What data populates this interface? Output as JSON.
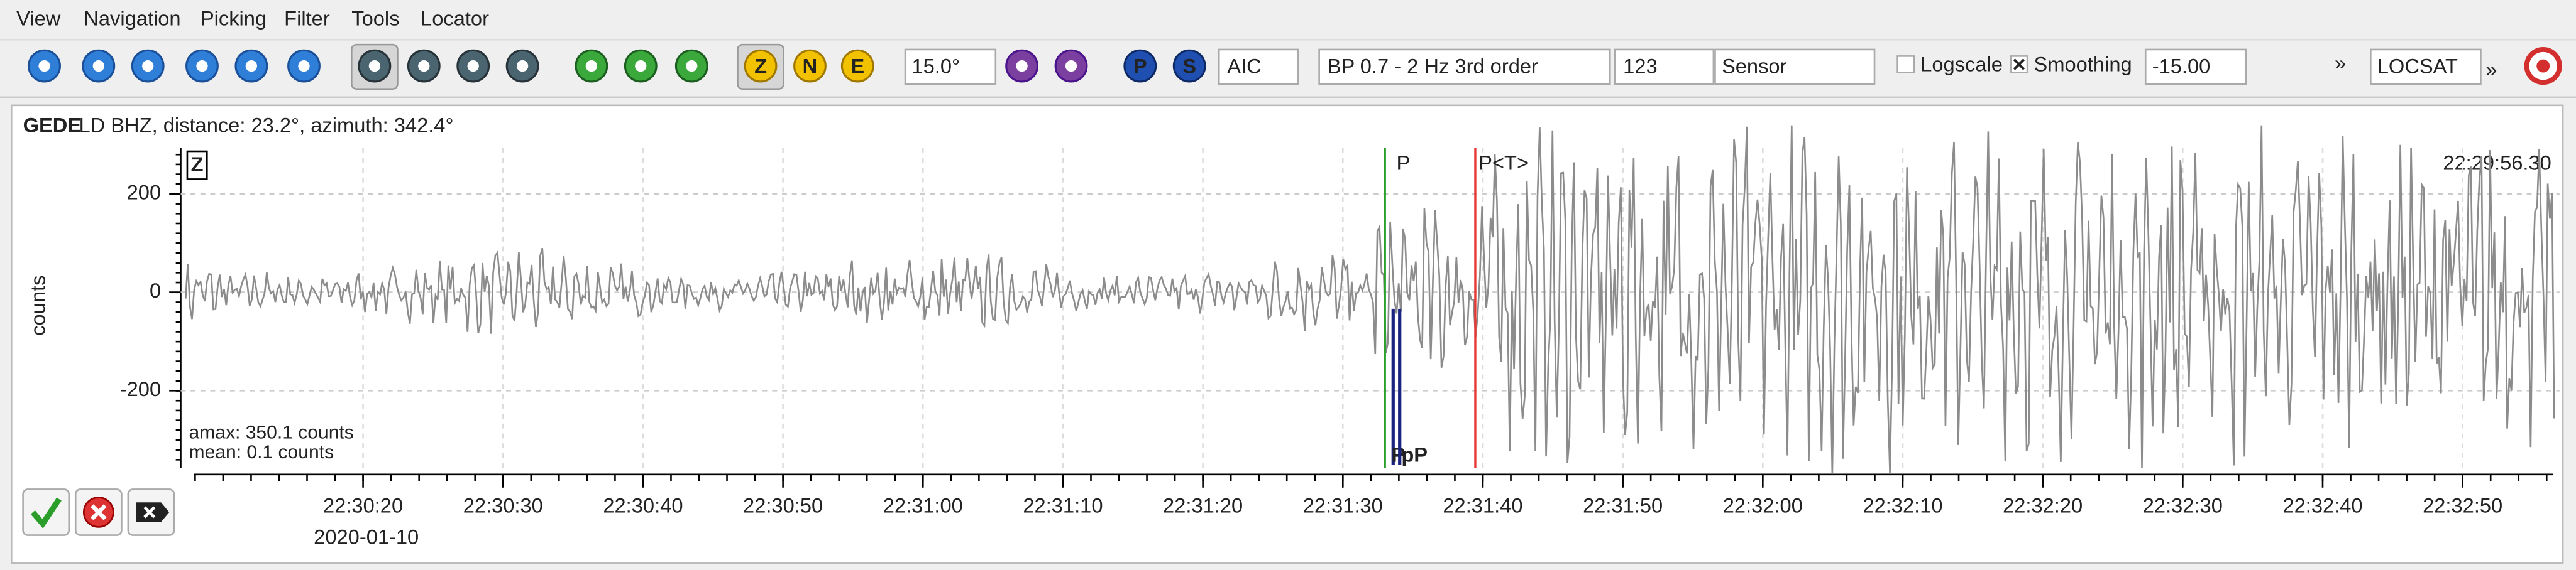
{
  "menu": [
    "View",
    "Navigation",
    "Picking",
    "Filter",
    "Tools",
    "Locator"
  ],
  "toolbar": {
    "angle": "15.0°",
    "picker": "AIC",
    "filter": "BP 0.7 - 2 Hz  3rd order",
    "channel": "123",
    "unit": "Sensor",
    "logscale": "Logscale",
    "smoothing": "Smoothing",
    "offset": "-15.00",
    "locator": "LOCSAT",
    "more": "»",
    "components": [
      "Z",
      "N",
      "E"
    ],
    "phases": [
      "P",
      "S"
    ]
  },
  "trace": {
    "station": "GEDE",
    "header": "LD  BHZ, distance: 23.2°, azimuth: 342.4°",
    "component": "Z",
    "ylabel": "counts",
    "ylim": [
      -357,
      293
    ],
    "yticks": [
      200,
      0,
      -200
    ],
    "xticks": [
      "22:30:20",
      "22:30:30",
      "22:30:40",
      "22:30:50",
      "22:31:00",
      "22:31:10",
      "22:31:20",
      "22:31:30",
      "22:31:40",
      "22:31:50",
      "22:32:00",
      "22:32:10",
      "22:32:20",
      "22:32:30",
      "22:32:40",
      "22:32:50"
    ],
    "date": "2020-01-10",
    "start_time": "22:29:56.30",
    "stats": [
      "amax: 350.1 counts",
      "mean: 0.1 counts"
    ],
    "picks": [
      {
        "label": "P",
        "color": "#2ca02c"
      },
      {
        "label": "P<T>",
        "color": "#e53935"
      },
      {
        "label": "P",
        "color": "#1a237e"
      },
      {
        "label": "pP",
        "color": "#1a237e"
      }
    ]
  }
}
